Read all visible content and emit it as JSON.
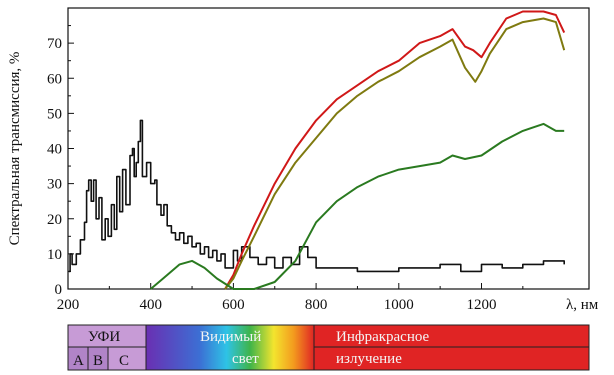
{
  "chart_data": {
    "type": "line",
    "ylabel": "Спектральная трансмиссия, %",
    "xlabel": "λ, нм",
    "xlim": [
      200,
      1460
    ],
    "ylim": [
      0,
      80
    ],
    "grid": false,
    "x_ticks": [
      "200",
      "400",
      "600",
      "800",
      "1000",
      "1200"
    ],
    "y_ticks": [
      "0",
      "10",
      "20",
      "30",
      "40",
      "50",
      "60",
      "70"
    ],
    "series": [
      {
        "color": "#111111",
        "values": [
          [
            202,
            5
          ],
          [
            205,
            10
          ],
          [
            210,
            7
          ],
          [
            220,
            10
          ],
          [
            230,
            14
          ],
          [
            240,
            19
          ],
          [
            245,
            28
          ],
          [
            250,
            31
          ],
          [
            256,
            25
          ],
          [
            262,
            31
          ],
          [
            268,
            20
          ],
          [
            275,
            26
          ],
          [
            282,
            14
          ],
          [
            290,
            20
          ],
          [
            297,
            15
          ],
          [
            305,
            24
          ],
          [
            312,
            17
          ],
          [
            318,
            32
          ],
          [
            325,
            22
          ],
          [
            332,
            34
          ],
          [
            340,
            24
          ],
          [
            350,
            38
          ],
          [
            356,
            40
          ],
          [
            360,
            32
          ],
          [
            365,
            36
          ],
          [
            370,
            42
          ],
          [
            375,
            48
          ],
          [
            380,
            32
          ],
          [
            390,
            36
          ],
          [
            400,
            30
          ],
          [
            410,
            31
          ],
          [
            415,
            24
          ],
          [
            425,
            21
          ],
          [
            432,
            24
          ],
          [
            440,
            18
          ],
          [
            450,
            16
          ],
          [
            460,
            14
          ],
          [
            470,
            16
          ],
          [
            480,
            13
          ],
          [
            490,
            15
          ],
          [
            500,
            12
          ],
          [
            510,
            13
          ],
          [
            520,
            10
          ],
          [
            530,
            12
          ],
          [
            540,
            9
          ],
          [
            550,
            11
          ],
          [
            560,
            8
          ],
          [
            570,
            10
          ],
          [
            580,
            6
          ],
          [
            600,
            11
          ],
          [
            610,
            8
          ],
          [
            620,
            12
          ],
          [
            640,
            9
          ],
          [
            660,
            7
          ],
          [
            680,
            9
          ],
          [
            700,
            6
          ],
          [
            720,
            9
          ],
          [
            740,
            7
          ],
          [
            760,
            12
          ],
          [
            780,
            9
          ],
          [
            800,
            6
          ],
          [
            850,
            6
          ],
          [
            900,
            5
          ],
          [
            950,
            5
          ],
          [
            1000,
            6
          ],
          [
            1050,
            6
          ],
          [
            1100,
            7
          ],
          [
            1150,
            5
          ],
          [
            1200,
            7
          ],
          [
            1250,
            6
          ],
          [
            1300,
            7
          ],
          [
            1350,
            8
          ],
          [
            1400,
            7
          ]
        ]
      },
      {
        "color": "#d01818",
        "values": [
          [
            580,
            0
          ],
          [
            600,
            4
          ],
          [
            620,
            10
          ],
          [
            650,
            18
          ],
          [
            700,
            30
          ],
          [
            750,
            40
          ],
          [
            800,
            48
          ],
          [
            850,
            54
          ],
          [
            900,
            58
          ],
          [
            950,
            62
          ],
          [
            1000,
            65
          ],
          [
            1050,
            70
          ],
          [
            1100,
            72
          ],
          [
            1130,
            74
          ],
          [
            1160,
            69
          ],
          [
            1180,
            68
          ],
          [
            1200,
            66
          ],
          [
            1220,
            70
          ],
          [
            1260,
            77
          ],
          [
            1300,
            79
          ],
          [
            1350,
            79
          ],
          [
            1380,
            78
          ],
          [
            1400,
            73
          ]
        ]
      },
      {
        "color": "#7f7a10",
        "values": [
          [
            580,
            0
          ],
          [
            600,
            3
          ],
          [
            620,
            8
          ],
          [
            650,
            15
          ],
          [
            700,
            27
          ],
          [
            750,
            36
          ],
          [
            800,
            43
          ],
          [
            850,
            50
          ],
          [
            900,
            55
          ],
          [
            950,
            59
          ],
          [
            1000,
            62
          ],
          [
            1050,
            66
          ],
          [
            1100,
            69
          ],
          [
            1130,
            71
          ],
          [
            1160,
            63
          ],
          [
            1185,
            59
          ],
          [
            1200,
            62
          ],
          [
            1220,
            67
          ],
          [
            1260,
            74
          ],
          [
            1300,
            76
          ],
          [
            1350,
            77
          ],
          [
            1380,
            76
          ],
          [
            1400,
            68
          ]
        ]
      },
      {
        "color": "#2a7a20",
        "values": [
          [
            400,
            0
          ],
          [
            430,
            3
          ],
          [
            470,
            7
          ],
          [
            500,
            8
          ],
          [
            530,
            6
          ],
          [
            560,
            3
          ],
          [
            600,
            0
          ],
          [
            650,
            0
          ],
          [
            700,
            2
          ],
          [
            750,
            8
          ],
          [
            800,
            19
          ],
          [
            850,
            25
          ],
          [
            900,
            29
          ],
          [
            950,
            32
          ],
          [
            1000,
            34
          ],
          [
            1050,
            35
          ],
          [
            1100,
            36
          ],
          [
            1130,
            38
          ],
          [
            1160,
            37
          ],
          [
            1200,
            38
          ],
          [
            1250,
            42
          ],
          [
            1300,
            45
          ],
          [
            1350,
            47
          ],
          [
            1380,
            45
          ],
          [
            1400,
            45
          ]
        ]
      }
    ]
  },
  "spectrum_bar": {
    "uv_label": "УФИ",
    "uv_subbands": [
      "А",
      "В",
      "С"
    ],
    "visible_line1": "Видимый",
    "visible_line2": "свет",
    "ir_line1": "Инфракрасное",
    "ir_line2": "излучение"
  },
  "colors": {
    "uv": "#c79bd6",
    "uv_sub": "#b184c8",
    "violet": "#6a2fb2",
    "blue": "#3c6fd4",
    "cyan": "#2ec3e6",
    "green": "#3fb44a",
    "yellow": "#f3e52e",
    "orange": "#f39a1e",
    "red": "#e02424"
  }
}
